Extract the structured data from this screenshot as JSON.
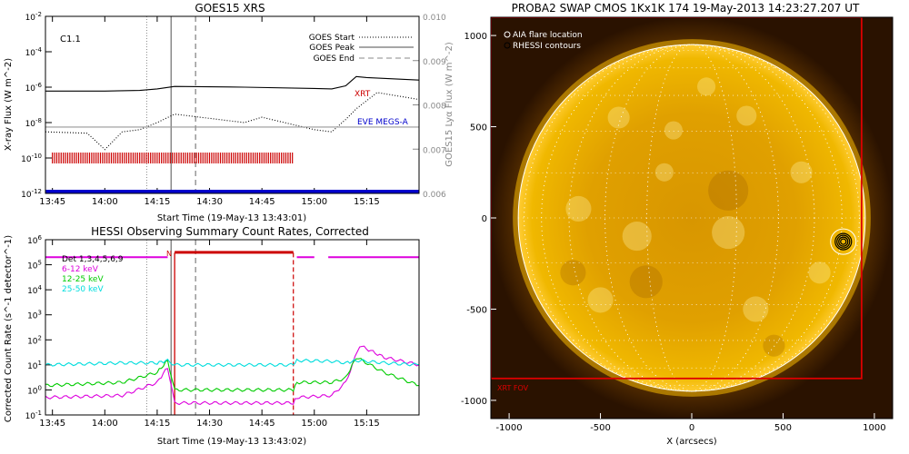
{
  "chart_data": [
    {
      "type": "line",
      "title": "GOES15 XRS",
      "xlabel": "Start Time (19-May-13 13:43:01)",
      "ylabel": "X-ray Flux (W m^-2)",
      "ylabel_right": "GOES15 Lyα Flux (W m^-2)",
      "xlim": [
        "13:43",
        "15:30"
      ],
      "x_ticks": [
        "13:45",
        "14:00",
        "14:15",
        "14:30",
        "14:45",
        "15:00",
        "15:15"
      ],
      "y_scale": "log",
      "ylim": [
        1e-12,
        0.01
      ],
      "y_ticks": [
        "10^-2",
        "10^-4",
        "10^-6",
        "10^-8",
        "10^-10",
        "10^-12"
      ],
      "y2_scale": "linear",
      "y2lim": [
        0.006,
        0.01
      ],
      "y2_ticks": [
        "0.010",
        "0.009",
        "0.008",
        "0.007",
        "0.006"
      ],
      "class_label": "C1.1",
      "legend": [
        {
          "label": "GOES Start",
          "style": "dotted"
        },
        {
          "label": "GOES Peak",
          "style": "solid"
        },
        {
          "label": "GOES End",
          "style": "dashed"
        }
      ],
      "legend_position": "top-right",
      "vlines": {
        "start": "14:12",
        "peak": "14:19",
        "end": "14:26"
      },
      "annotations": [
        {
          "text": "XRT",
          "color": "#cc0000"
        },
        {
          "text": "EVE MEGS-A",
          "color": "#0000cc"
        }
      ],
      "series": [
        {
          "name": "",
          "axis": "left",
          "color": "#000000",
          "style": "solid",
          "x": [
            "13:43",
            "14:00",
            "14:10",
            "14:15",
            "14:20",
            "14:40",
            "15:00",
            "15:05",
            "15:09",
            "15:12",
            "15:15",
            "15:30"
          ],
          "y": [
            6e-07,
            6e-07,
            6.5e-07,
            8e-07,
            1.1e-06,
            1e-06,
            8.5e-07,
            8e-07,
            1.2e-06,
            4e-06,
            3.5e-06,
            2.5e-06
          ]
        },
        {
          "name": "",
          "axis": "left",
          "color": "#000000",
          "style": "dotted",
          "x": [
            "13:43",
            "13:55",
            "14:00",
            "14:05",
            "14:10",
            "14:15",
            "14:20",
            "14:40",
            "14:45",
            "15:00",
            "15:05",
            "15:09",
            "15:12",
            "15:18",
            "15:30"
          ],
          "y": [
            3e-09,
            2.5e-09,
            3e-10,
            3e-09,
            4e-09,
            1e-08,
            3e-08,
            1e-08,
            2e-08,
            4e-09,
            3e-09,
            1.5e-08,
            6e-08,
            5e-07,
            2e-07
          ]
        },
        {
          "name": "",
          "axis": "right",
          "color": "#999999",
          "style": "solid",
          "x": [
            "13:43",
            "14:00",
            "14:20",
            "14:50",
            "15:00",
            "15:15",
            "15:30"
          ],
          "y": [
            0.0075,
            0.0075,
            0.0075,
            0.0075,
            0.0075,
            0.0075,
            0.0075
          ]
        }
      ],
      "xrt_bars": {
        "color": "#cc0000",
        "from": "13:45",
        "to": "14:54",
        "level": 1e-10
      },
      "eve_bar": {
        "color": "#0000cc",
        "from": "13:43",
        "to": "15:30",
        "level": 1e-12
      }
    },
    {
      "type": "line",
      "title": "HESSI Observing Summary Count Rates, Corrected",
      "xlabel": "Start Time (19-May-13 13:43:02)",
      "ylabel": "Corrected Count Rate (s^-1 detector^-1)",
      "xlim": [
        "13:43",
        "15:30"
      ],
      "x_ticks": [
        "13:45",
        "14:00",
        "14:15",
        "14:30",
        "14:45",
        "15:00",
        "15:15"
      ],
      "y_scale": "log",
      "ylim": [
        0.1,
        1000000.0
      ],
      "y_ticks": [
        "10^6",
        "10^5",
        "10^4",
        "10^3",
        "10^2",
        "10^1",
        "10^0",
        "10^-1"
      ],
      "detectors_label": "Det 1,3,4,5,6,9",
      "legend_position": "top-left",
      "flag_label": "N",
      "vlines": {
        "start": "14:12",
        "peak": "14:19",
        "end": "14:26"
      },
      "series": [
        {
          "name": "6-12 keV",
          "color": "#dd00dd",
          "x": [
            "13:43",
            "14:05",
            "14:15",
            "14:18",
            "14:20",
            "14:54",
            "14:55",
            "15:05",
            "15:09",
            "15:13",
            "15:20",
            "15:30"
          ],
          "y": [
            0.5,
            0.6,
            2,
            8,
            0.3,
            0.3,
            0.5,
            0.6,
            2,
            60,
            20,
            10
          ]
        },
        {
          "name": "12-25 keV",
          "color": "#00cc00",
          "x": [
            "13:43",
            "14:05",
            "14:15",
            "14:18",
            "14:20",
            "14:54",
            "14:55",
            "15:05",
            "15:09",
            "15:12",
            "15:20",
            "15:30"
          ],
          "y": [
            1.5,
            2,
            5,
            15,
            1,
            1,
            2,
            2,
            3,
            20,
            5,
            1.5
          ]
        },
        {
          "name": "25-50 keV",
          "color": "#00dddd",
          "x": [
            "13:43",
            "14:05",
            "14:15",
            "14:18",
            "14:20",
            "14:54",
            "14:55",
            "15:05",
            "15:09",
            "15:12",
            "15:20",
            "15:30"
          ],
          "y": [
            10,
            12,
            12,
            15,
            10,
            10,
            15,
            14,
            12,
            15,
            12,
            10
          ]
        }
      ],
      "flag_bars": {
        "magenta_segments": [
          [
            "13:43",
            "14:18"
          ],
          [
            "14:55",
            "15:00"
          ],
          [
            "15:04",
            "15:30"
          ]
        ],
        "red_segment": [
          "14:20",
          "14:54"
        ]
      }
    },
    {
      "type": "image",
      "title": "PROBA2 SWAP CMOS 1Kx1K 174 19-May-2013 14:23:27.207 UT",
      "xlabel": "X (arcsecs)",
      "ylabel": "",
      "xlim": [
        -1100,
        1100
      ],
      "ylim": [
        -1100,
        1100
      ],
      "x_ticks": [
        "-1000",
        "-500",
        "0",
        "500",
        "1000"
      ],
      "y_ticks": [
        "1000",
        "500",
        "0",
        "-500",
        "-1000"
      ],
      "legend": [
        {
          "label": "AIA flare location"
        },
        {
          "label": "RHESSI contours"
        }
      ],
      "legend_position": "top-left",
      "solar_radius": 950,
      "flare_location": [
        830,
        -130
      ],
      "fov_label": "XRT FOV",
      "fov_box": {
        "x0": -1100,
        "x1": 930,
        "y0": -880,
        "y1": 1100
      },
      "colors": {
        "sun": "#e6a800",
        "limb": "#ffffff",
        "fov": "#dd0000",
        "bg": "#000000"
      }
    }
  ]
}
